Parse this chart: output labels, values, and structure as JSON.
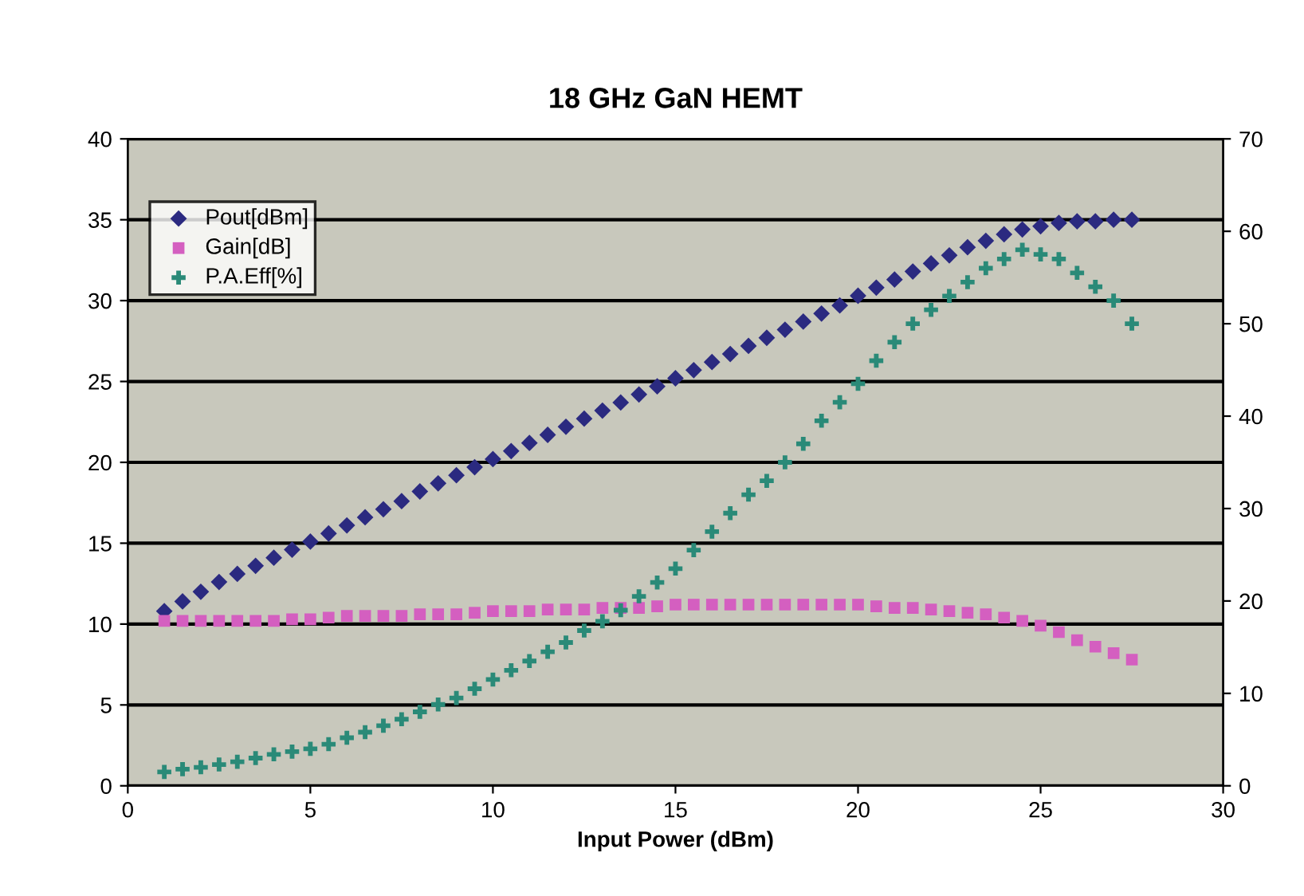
{
  "chart_data": {
    "type": "scatter",
    "title": "18 GHz GaN HEMT",
    "xlabel": "Input Power (dBm)",
    "x": [
      1,
      1.5,
      2,
      2.5,
      3,
      3.5,
      4,
      4.5,
      5,
      5.5,
      6,
      6.5,
      7,
      7.5,
      8,
      8.5,
      9,
      9.5,
      10,
      10.5,
      11,
      11.5,
      12,
      12.5,
      13,
      13.5,
      14,
      14.5,
      15,
      15.5,
      16,
      16.5,
      17,
      17.5,
      18,
      18.5,
      19,
      19.5,
      20,
      20.5,
      21,
      21.5,
      22,
      22.5,
      23,
      23.5,
      24,
      24.5,
      25,
      25.5,
      26,
      26.5,
      27,
      27.5
    ],
    "series": [
      {
        "name": "Pout[dBm]",
        "color": "#2b2a80",
        "marker": "diamond",
        "values": [
          10.8,
          11.4,
          12,
          12.6,
          13.1,
          13.6,
          14.1,
          14.6,
          15.1,
          15.6,
          16.1,
          16.6,
          17.1,
          17.6,
          18.2,
          18.7,
          19.2,
          19.7,
          20.2,
          20.7,
          21.2,
          21.7,
          22.2,
          22.7,
          23.2,
          23.7,
          24.2,
          24.7,
          25.2,
          25.7,
          26.2,
          26.7,
          27.2,
          27.7,
          28.2,
          28.7,
          29.2,
          29.7,
          30.3,
          30.8,
          31.3,
          31.8,
          32.3,
          32.8,
          33.3,
          33.7,
          34.1,
          34.4,
          34.6,
          34.8,
          34.9,
          34.9,
          35,
          35
        ]
      },
      {
        "name": "Gain[dB]",
        "color": "#d45fc0",
        "marker": "square",
        "values": [
          10.2,
          10.2,
          10.2,
          10.2,
          10.2,
          10.2,
          10.2,
          10.3,
          10.3,
          10.4,
          10.5,
          10.5,
          10.5,
          10.5,
          10.6,
          10.6,
          10.6,
          10.7,
          10.8,
          10.8,
          10.8,
          10.9,
          10.9,
          10.9,
          11,
          11,
          11,
          11.1,
          11.2,
          11.2,
          11.2,
          11.2,
          11.2,
          11.2,
          11.2,
          11.2,
          11.2,
          11.2,
          11.2,
          11.1,
          11,
          11,
          10.9,
          10.8,
          10.7,
          10.6,
          10.4,
          10.2,
          9.9,
          9.5,
          9,
          8.6,
          8.2,
          7.8
        ]
      },
      {
        "name": "P.A.Eff[%]",
        "color": "#2a8a78",
        "marker": "cross",
        "axis": "y2",
        "values": [
          1.5,
          1.8,
          2,
          2.3,
          2.6,
          3,
          3.4,
          3.7,
          4,
          4.5,
          5.2,
          5.8,
          6.5,
          7.2,
          8,
          8.8,
          9.5,
          10.5,
          11.5,
          12.5,
          13.5,
          14.5,
          15.5,
          16.8,
          17.8,
          19,
          20.5,
          22,
          23.5,
          25.5,
          27.5,
          29.5,
          31.5,
          33,
          35,
          37,
          39.5,
          41.5,
          43.5,
          46,
          48,
          50,
          51.5,
          53,
          54.5,
          56,
          57,
          58,
          57.5,
          57,
          55.5,
          54,
          52.5,
          50
        ]
      }
    ],
    "xlim": [
      0,
      30
    ],
    "xticks": [
      0,
      5,
      10,
      15,
      20,
      25,
      30
    ],
    "ylim": [
      0,
      40
    ],
    "yticks": [
      0,
      5,
      10,
      15,
      20,
      25,
      30,
      35,
      40
    ],
    "y2lim": [
      0,
      70
    ],
    "y2ticks": [
      0,
      10,
      20,
      30,
      40,
      50,
      60,
      70
    ],
    "grid": "y",
    "legend": "top left"
  }
}
